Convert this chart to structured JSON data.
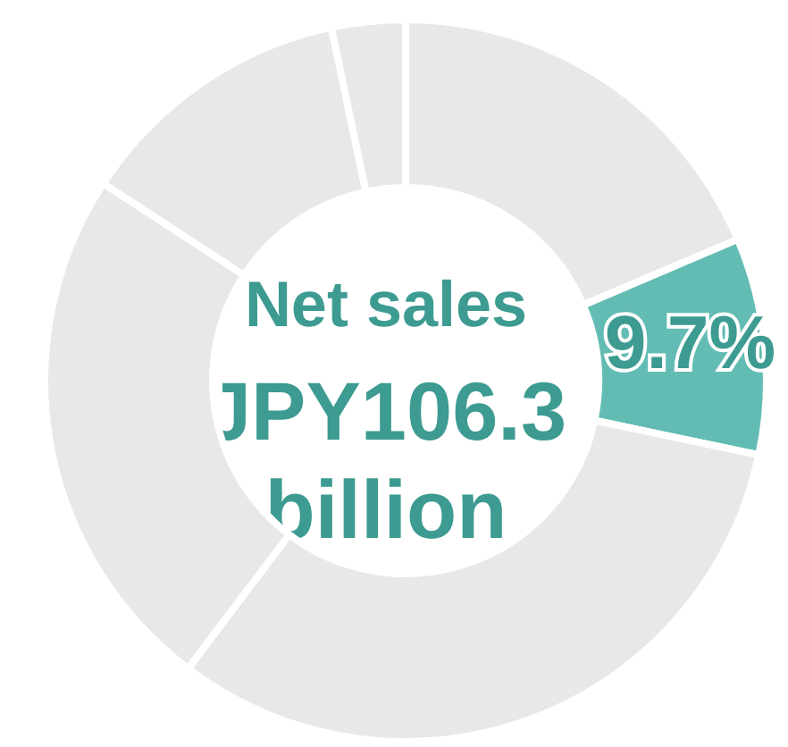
{
  "chart_data": {
    "type": "donut",
    "categories": [
      null,
      null,
      null,
      null,
      null,
      null
    ],
    "values": [
      18.6,
      9.7,
      32.0,
      23.9,
      12.5,
      3.3
    ],
    "colors": [
      "#e8e8e8",
      "#63bcb3",
      "#e8e8e8",
      "#e8e8e8",
      "#e8e8e8",
      "#e8e8e8"
    ],
    "value_labels": [
      null,
      "9.7%",
      null,
      null,
      null,
      null
    ],
    "annotations": [
      "Net sales",
      "JPY106.3",
      "billion"
    ],
    "legend": false
  }
}
